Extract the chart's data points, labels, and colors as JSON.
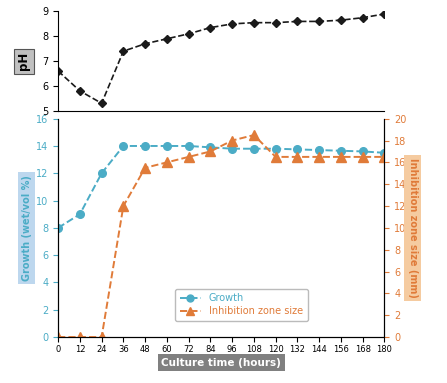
{
  "ph_x": [
    0,
    12,
    24,
    36,
    48,
    60,
    72,
    84,
    96,
    108,
    120,
    132,
    144,
    156,
    168,
    180
  ],
  "ph_y": [
    6.6,
    5.8,
    5.3,
    7.4,
    7.7,
    7.9,
    8.1,
    8.35,
    8.5,
    8.55,
    8.55,
    8.6,
    8.6,
    8.65,
    8.75,
    8.9
  ],
  "ph_ylim": [
    5,
    9
  ],
  "ph_yticks": [
    5,
    6,
    7,
    8,
    9
  ],
  "ph_ylabel": "pH",
  "growth_x": [
    0,
    12,
    24,
    36,
    48,
    60,
    72,
    84,
    96,
    108,
    120,
    132,
    144,
    156,
    168,
    180
  ],
  "growth_y": [
    8.0,
    9.0,
    12.0,
    14.0,
    14.0,
    14.0,
    14.0,
    13.9,
    13.8,
    13.8,
    13.8,
    13.75,
    13.7,
    13.65,
    13.6,
    13.5
  ],
  "inhibition_x": [
    0,
    12,
    24,
    36,
    48,
    60,
    72,
    84,
    96,
    108,
    120,
    132,
    144,
    156,
    168,
    180
  ],
  "inhibition_y": [
    0,
    0,
    0,
    12.0,
    15.5,
    16.0,
    16.5,
    17.0,
    18.0,
    18.5,
    16.5,
    16.5,
    16.5,
    16.5,
    16.5,
    16.5
  ],
  "growth_color": "#4bacc6",
  "inhibition_color": "#e07b39",
  "ph_color": "#1a1a1a",
  "growth_ylabel": "Growth (wet/vol %)",
  "growth_ylabel_bg": "#bdd7ee",
  "inhibition_ylabel": "Inhibition zone size (mm)",
  "inhibition_ylabel_bg": "#f5cba0",
  "xlabel": "Culture time (hours)",
  "xlabel_bg": "#808080",
  "growth_ylim": [
    0,
    16
  ],
  "growth_yticks": [
    0,
    2,
    4,
    6,
    8,
    10,
    12,
    14,
    16
  ],
  "inhibition_ylim": [
    0,
    20
  ],
  "inhibition_yticks": [
    0,
    2,
    4,
    6,
    8,
    10,
    12,
    14,
    16,
    18,
    20
  ],
  "xticks": [
    0,
    12,
    24,
    36,
    48,
    60,
    72,
    84,
    96,
    108,
    120,
    132,
    144,
    156,
    168,
    180
  ],
  "legend_growth": "Growth",
  "legend_inhibition": "Inhibition zone size"
}
